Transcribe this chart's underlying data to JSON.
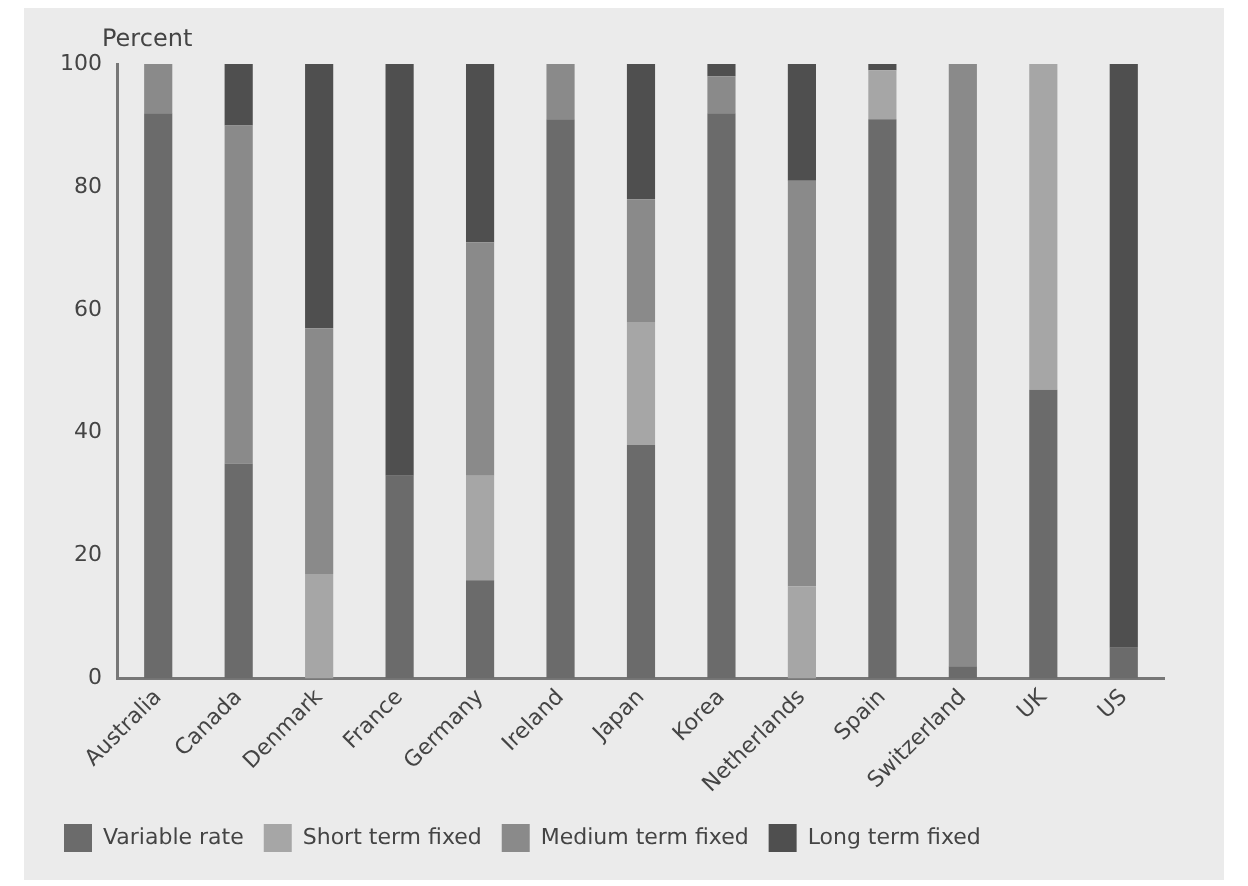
{
  "chart_data": {
    "type": "bar",
    "stacked": true,
    "ylabel": "Percent",
    "categories": [
      "Australia",
      "Canada",
      "Denmark",
      "France",
      "Germany",
      "Ireland",
      "Japan",
      "Korea",
      "Netherlands",
      "Spain",
      "Switzerland",
      "UK",
      "US"
    ],
    "series": [
      {
        "name": "Variable rate",
        "color": "#6b6b6b",
        "values": [
          92,
          35,
          0,
          33,
          16,
          91,
          38,
          92,
          0,
          91,
          2,
          47,
          5
        ]
      },
      {
        "name": "Short term fixed",
        "color": "#a6a6a6",
        "values": [
          0,
          0,
          17,
          0,
          17,
          0,
          20,
          0,
          15,
          8,
          0,
          53,
          0
        ]
      },
      {
        "name": "Medium term fixed",
        "color": "#8a8a8a",
        "values": [
          8,
          55,
          40,
          0,
          38,
          9,
          20,
          6,
          66,
          0,
          98,
          0,
          0
        ]
      },
      {
        "name": "Long term fixed",
        "color": "#4f4f4f",
        "values": [
          0,
          10,
          43,
          67,
          29,
          0,
          22,
          2,
          19,
          1,
          0,
          0,
          95
        ]
      }
    ],
    "ylim": [
      0,
      100
    ],
    "yticks": [
      0,
      20,
      40,
      60,
      80,
      100
    ],
    "grid": false,
    "legend": "bottom"
  }
}
